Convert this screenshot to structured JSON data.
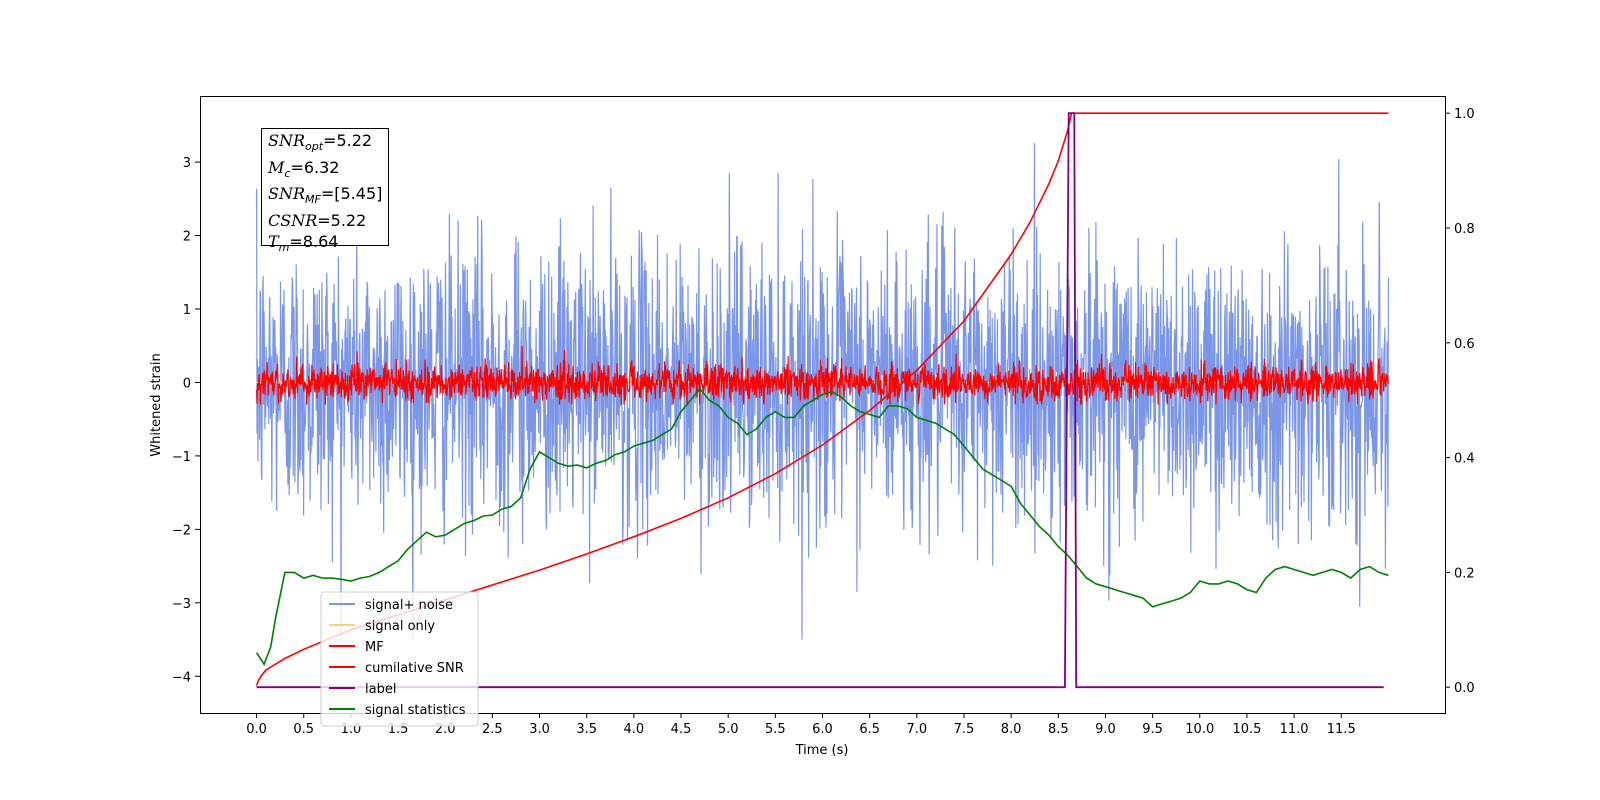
{
  "chart_data": {
    "type": "line",
    "xlabel": "Time (s)",
    "ylabel": "Whitened strain",
    "xlim": [
      -0.6,
      12.6
    ],
    "ylim": [
      -4.5,
      3.9
    ],
    "y2lim": [
      -0.045,
      1.03
    ],
    "x_ticks": [
      0.0,
      0.5,
      1.0,
      1.5,
      2.0,
      2.5,
      3.0,
      3.5,
      4.0,
      4.5,
      5.0,
      5.5,
      6.0,
      6.5,
      7.0,
      7.5,
      8.0,
      8.5,
      9.0,
      9.5,
      10.0,
      10.5,
      11.0,
      11.5
    ],
    "x_tick_labels": [
      "0.0",
      "0.5",
      "1.0",
      "1.5",
      "2.0",
      "2.5",
      "3.0",
      "3.5",
      "4.0",
      "4.5",
      "5.0",
      "5.5",
      "6.0",
      "6.5",
      "7.0",
      "7.5",
      "8.0",
      "8.5",
      "9.0",
      "9.5",
      "10.0",
      "10.5",
      "11.0",
      "11.5"
    ],
    "y_ticks": [
      3,
      2,
      1,
      0,
      -1,
      -2,
      -3,
      -4
    ],
    "y_tick_labels": [
      "3",
      "2",
      "1",
      "0",
      "−1",
      "−2",
      "−3",
      "−4"
    ],
    "y2_ticks": [
      1.0,
      0.8,
      0.6,
      0.4,
      0.2,
      0.0
    ],
    "y2_tick_labels": [
      "1.0",
      "0.8",
      "0.6",
      "0.4",
      "0.2",
      "0.0"
    ],
    "annotation": {
      "snr_opt": "5.22",
      "mc": "6.32",
      "snr_mf": "[5.45]",
      "csnr": "5.22",
      "tm": "8.64"
    },
    "legend_position": "lower-left",
    "series": [
      {
        "name": "signal+ noise",
        "color": "#7b96e8",
        "axis": "left",
        "kind": "noise",
        "x_range": [
          0.0,
          12.0
        ],
        "std": 0.95,
        "min": -3.5,
        "max": 3.55
      },
      {
        "name": "signal only",
        "color": "#ffcc80",
        "axis": "left",
        "kind": "flat",
        "x_range": [
          0.0,
          12.0
        ],
        "value": 0.0
      },
      {
        "name": "MF",
        "color": "#ff0000",
        "axis": "left",
        "kind": "noise",
        "x_range": [
          0.0,
          12.0
        ],
        "std": 0.13,
        "min": -0.3,
        "max": 0.65
      },
      {
        "name": "cumilative SNR",
        "color": "#ff0000",
        "axis": "right",
        "x": [
          0.0,
          0.02,
          0.05,
          0.1,
          0.3,
          0.5,
          1.0,
          1.5,
          2.0,
          2.5,
          3.0,
          3.5,
          4.0,
          4.5,
          5.0,
          5.5,
          6.0,
          6.5,
          7.0,
          7.5,
          8.0,
          8.2,
          8.4,
          8.5,
          8.6,
          8.64,
          12.0
        ],
        "values": [
          0.003,
          0.012,
          0.02,
          0.03,
          0.05,
          0.066,
          0.1,
          0.126,
          0.152,
          0.178,
          0.204,
          0.232,
          0.262,
          0.294,
          0.33,
          0.372,
          0.422,
          0.482,
          0.552,
          0.638,
          0.754,
          0.81,
          0.877,
          0.917,
          0.97,
          1.0,
          1.0
        ]
      },
      {
        "name": "label",
        "color": "#800080",
        "axis": "right",
        "x": [
          0.0,
          8.57,
          8.61,
          8.67,
          8.69,
          11.95
        ],
        "values": [
          0.0,
          0.0,
          1.0,
          1.0,
          0.0,
          0.0
        ]
      },
      {
        "name": "signal statistics",
        "color": "#008000",
        "axis": "right",
        "x": [
          0.0,
          0.08,
          0.15,
          0.2,
          0.25,
          0.3,
          0.4,
          0.5,
          0.6,
          0.7,
          0.8,
          0.9,
          1.0,
          1.1,
          1.2,
          1.3,
          1.4,
          1.5,
          1.6,
          1.7,
          1.8,
          1.9,
          2.0,
          2.1,
          2.2,
          2.3,
          2.4,
          2.5,
          2.6,
          2.7,
          2.8,
          2.9,
          3.0,
          3.1,
          3.2,
          3.3,
          3.4,
          3.5,
          3.6,
          3.7,
          3.8,
          3.9,
          4.0,
          4.1,
          4.2,
          4.3,
          4.4,
          4.5,
          4.6,
          4.7,
          4.8,
          4.9,
          5.0,
          5.1,
          5.2,
          5.3,
          5.4,
          5.5,
          5.6,
          5.7,
          5.8,
          5.9,
          6.0,
          6.1,
          6.2,
          6.3,
          6.4,
          6.5,
          6.6,
          6.7,
          6.8,
          6.9,
          7.0,
          7.1,
          7.2,
          7.3,
          7.4,
          7.5,
          7.6,
          7.7,
          7.8,
          7.9,
          8.0,
          8.1,
          8.2,
          8.3,
          8.4,
          8.5,
          8.6,
          8.7,
          8.8,
          8.9,
          9.0,
          9.1,
          9.2,
          9.3,
          9.4,
          9.5,
          9.6,
          9.7,
          9.8,
          9.9,
          10.0,
          10.1,
          10.2,
          10.3,
          10.4,
          10.5,
          10.6,
          10.7,
          10.8,
          10.9,
          11.0,
          11.1,
          11.2,
          11.3,
          11.4,
          11.5,
          11.6,
          11.7,
          11.8,
          11.9,
          12.0
        ],
        "values": [
          0.06,
          0.04,
          0.07,
          0.12,
          0.16,
          0.2,
          0.2,
          0.19,
          0.195,
          0.19,
          0.19,
          0.188,
          0.185,
          0.19,
          0.193,
          0.2,
          0.21,
          0.22,
          0.24,
          0.255,
          0.27,
          0.262,
          0.265,
          0.275,
          0.285,
          0.29,
          0.298,
          0.3,
          0.31,
          0.315,
          0.33,
          0.38,
          0.41,
          0.4,
          0.39,
          0.385,
          0.387,
          0.382,
          0.39,
          0.395,
          0.405,
          0.41,
          0.42,
          0.425,
          0.43,
          0.44,
          0.45,
          0.48,
          0.5,
          0.52,
          0.5,
          0.49,
          0.47,
          0.46,
          0.44,
          0.45,
          0.47,
          0.48,
          0.47,
          0.47,
          0.49,
          0.5,
          0.51,
          0.515,
          0.505,
          0.49,
          0.48,
          0.475,
          0.47,
          0.49,
          0.49,
          0.485,
          0.47,
          0.465,
          0.46,
          0.45,
          0.44,
          0.42,
          0.4,
          0.38,
          0.37,
          0.36,
          0.35,
          0.32,
          0.3,
          0.28,
          0.265,
          0.245,
          0.23,
          0.21,
          0.19,
          0.18,
          0.175,
          0.17,
          0.165,
          0.16,
          0.155,
          0.14,
          0.145,
          0.15,
          0.155,
          0.165,
          0.185,
          0.18,
          0.18,
          0.185,
          0.18,
          0.17,
          0.165,
          0.19,
          0.205,
          0.21,
          0.205,
          0.2,
          0.195,
          0.2,
          0.205,
          0.2,
          0.19,
          0.205,
          0.21,
          0.2,
          0.195
        ]
      }
    ]
  }
}
